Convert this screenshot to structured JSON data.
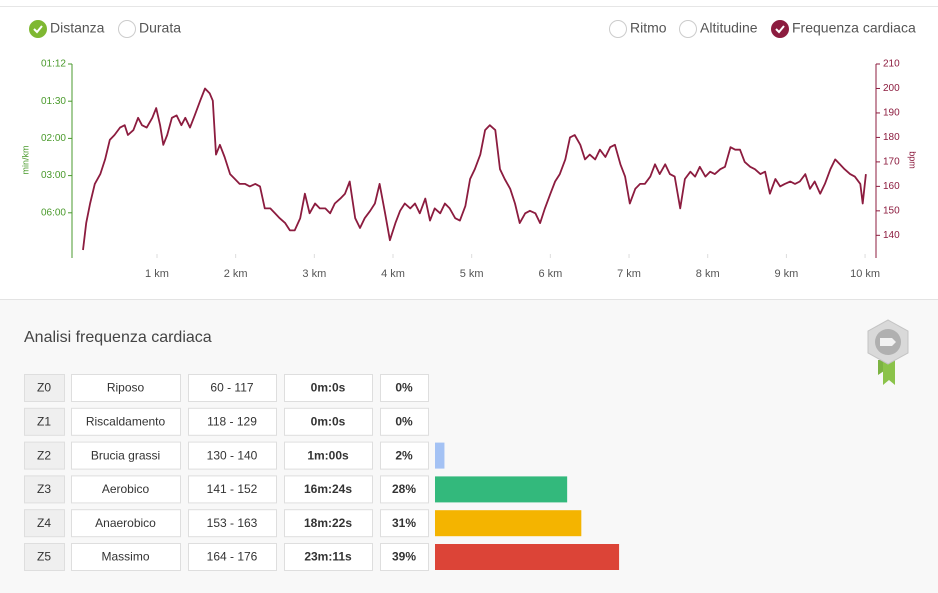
{
  "toggles": [
    {
      "label": "Distanza",
      "checked": true
    },
    {
      "label": "Durata",
      "checked": false
    },
    {
      "label": "Ritmo",
      "checked": false
    },
    {
      "label": "Altitudine",
      "checked": false
    }
  ],
  "chart_data": {
    "type": "line",
    "x": [
      0.06,
      0.1,
      0.15,
      0.21,
      0.28,
      0.34,
      0.4,
      0.46,
      0.53,
      0.59,
      0.63,
      0.7,
      0.76,
      0.81,
      0.87,
      0.94,
      0.99,
      1.04,
      1.08,
      1.13,
      1.19,
      1.25,
      1.31,
      1.36,
      1.42,
      1.48,
      1.55,
      1.61,
      1.67,
      1.71,
      1.75,
      1.8,
      1.86,
      1.93,
      1.99,
      2.05,
      2.12,
      2.18,
      2.25,
      2.31,
      2.37,
      2.44,
      2.5,
      2.56,
      2.63,
      2.69,
      2.75,
      2.82,
      2.88,
      2.94,
      3.01,
      3.07,
      3.14,
      3.2,
      3.26,
      3.33,
      3.39,
      3.45,
      3.52,
      3.58,
      3.64,
      3.71,
      3.77,
      3.83,
      3.9,
      3.96,
      4.03,
      4.09,
      4.15,
      4.22,
      4.28,
      4.34,
      4.41,
      4.47,
      4.53,
      4.6,
      4.66,
      4.72,
      4.79,
      4.85,
      4.92,
      4.98,
      5.04,
      5.11,
      5.17,
      5.23,
      5.3,
      5.36,
      5.42,
      5.49,
      5.55,
      5.61,
      5.68,
      5.74,
      5.81,
      5.87,
      5.93,
      6.0,
      6.06,
      6.12,
      6.19,
      6.25,
      6.31,
      6.38,
      6.44,
      6.5,
      6.57,
      6.63,
      6.7,
      6.76,
      6.82,
      6.89,
      6.95,
      7.01,
      7.08,
      7.14,
      7.2,
      7.27,
      7.33,
      7.39,
      7.46,
      7.52,
      7.58,
      7.65,
      7.71,
      7.78,
      7.84,
      7.9,
      7.97,
      8.03,
      8.09,
      8.16,
      8.22,
      8.29,
      8.35,
      8.41,
      8.47,
      8.54,
      8.6,
      8.67,
      8.73,
      8.79,
      8.86,
      8.92,
      8.98,
      9.05,
      9.11,
      9.17,
      9.24,
      9.3,
      9.36,
      9.43,
      9.49,
      9.56,
      9.62,
      9.68,
      9.74,
      9.81,
      9.87,
      9.94,
      9.97,
      10.01
    ],
    "series": [
      {
        "name": "Frequenza cardiaca",
        "color": "#8c1c3f",
        "axis": "y2",
        "checked": true,
        "values": [
          134,
          145,
          153,
          161,
          165,
          171,
          179,
          181,
          184,
          185,
          181,
          183,
          188,
          185,
          184,
          188,
          192,
          185,
          177,
          181,
          188,
          189,
          185,
          188,
          184,
          189,
          195,
          200,
          198,
          195,
          173,
          177,
          172,
          165,
          163,
          161,
          161,
          160,
          161,
          160,
          151,
          151,
          149,
          147,
          145,
          142,
          142,
          147,
          157,
          149,
          153,
          151,
          151,
          149,
          153,
          155,
          157,
          162,
          147,
          143,
          147,
          150,
          153,
          161,
          149,
          138,
          145,
          150,
          153,
          151,
          153,
          149,
          155,
          146,
          151,
          149,
          153,
          151,
          147,
          146,
          152,
          163,
          167,
          173,
          183,
          185,
          183,
          167,
          163,
          159,
          153,
          145,
          149,
          150,
          149,
          145,
          151,
          157,
          162,
          165,
          171,
          180,
          181,
          177,
          171,
          173,
          171,
          175,
          172,
          176,
          177,
          169,
          164,
          153,
          159,
          161,
          161,
          164,
          169,
          165,
          169,
          165,
          164,
          151,
          163,
          166,
          164,
          168,
          164,
          166,
          165,
          167,
          168,
          176,
          175,
          175,
          170,
          168,
          167,
          165,
          166,
          157,
          163,
          160,
          161,
          162,
          161,
          162,
          165,
          159,
          162,
          157,
          161,
          167,
          171,
          169,
          167,
          165,
          164,
          161,
          153,
          165
        ]
      }
    ],
    "xlim": [
      0,
      10.05
    ],
    "xticks": [
      {
        "value": 1,
        "label": "1 km"
      },
      {
        "value": 2,
        "label": "2 km"
      },
      {
        "value": 3,
        "label": "3 km"
      },
      {
        "value": 4,
        "label": "4 km"
      },
      {
        "value": 5,
        "label": "5 km"
      },
      {
        "value": 6,
        "label": "6 km"
      },
      {
        "value": 7,
        "label": "7 km"
      },
      {
        "value": 8,
        "label": "8 km"
      },
      {
        "value": 9,
        "label": "9 km"
      },
      {
        "value": 10,
        "label": "10 km"
      }
    ],
    "ylabel": "min/km",
    "ycolor": "#4a9a2c",
    "ylim": [
      0,
      50
    ],
    "yticks": [
      {
        "value": 10,
        "label": "06:00"
      },
      {
        "value": 20,
        "label": "03:00"
      },
      {
        "value": 30,
        "label": "02:00"
      },
      {
        "value": 40,
        "label": "01:30"
      },
      {
        "value": 50,
        "label": "01:12"
      }
    ],
    "y2label": "bpm",
    "y2color": "#8c1c3f",
    "y2lim": [
      134,
      210
    ],
    "y2ticks": [
      140,
      150,
      160,
      170,
      180,
      190,
      200,
      210
    ]
  },
  "analysis": {
    "title": "Analisi frequenza cardiaca",
    "rows": [
      [
        "Z0",
        "Riposo",
        "60 - 117",
        "0m:0s"
      ],
      [
        "Z1",
        "Riscaldamento",
        "118 - 129",
        "0m:0s"
      ],
      [
        "Z2",
        "Brucia grassi",
        "130 - 140",
        "1m:00s"
      ],
      [
        "Z3",
        "Aerobico",
        "141 - 152",
        "16m:24s"
      ],
      [
        "Z4",
        "Anaerobico",
        "153 - 163",
        "18m:22s"
      ],
      [
        "Z5",
        "Massimo",
        "164 - 176",
        "23m:11s"
      ]
    ],
    "values": [
      0,
      0,
      2,
      28,
      31,
      39
    ],
    "value_labels": [
      "0%",
      "0%",
      "2%",
      "28%",
      "31%",
      "39%"
    ],
    "colors": [
      null,
      null,
      "#a4c2f4",
      "#33b97c",
      "#f4b400",
      "#dc4437"
    ]
  }
}
